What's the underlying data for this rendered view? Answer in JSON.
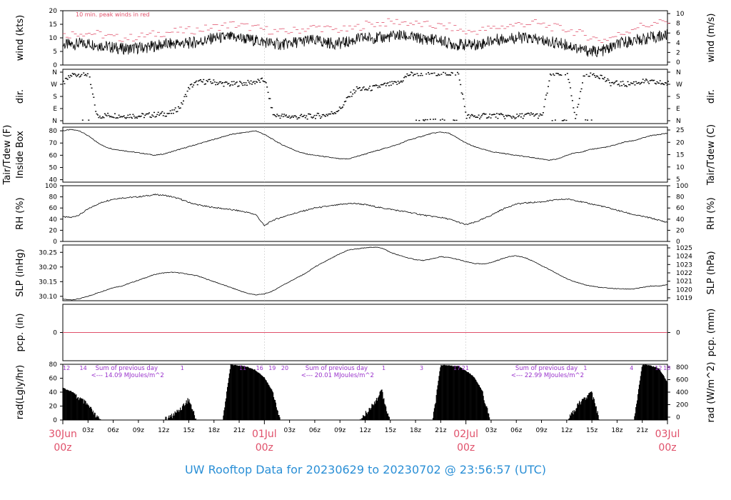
{
  "footer": "UW Rooftop Data for 20230629  to  20230702 @ 23:56:57  (UTC)",
  "colors": {
    "frame": "#000000",
    "peak": "#e0506a",
    "date": "#e0506a",
    "annot": "#9a33cc",
    "footer": "#2a8fd6"
  },
  "chart_data": [
    {
      "type": "line",
      "id": "wind",
      "ylabel": "wind (kts)",
      "ylabel_right": "wind (m/s)",
      "ylim": [
        0,
        20
      ],
      "yticks": [
        0,
        5,
        10,
        15,
        20
      ],
      "right_ylim": [
        0,
        10.29
      ],
      "right_ticks": [
        0,
        2,
        4,
        6,
        8,
        10
      ],
      "annotation": "10 min. peak winds in red",
      "series": [
        {
          "role": "mean",
          "x_hours": [
            0,
            1,
            2,
            3,
            4,
            5,
            6,
            7,
            8,
            9,
            10,
            11,
            12,
            13,
            14,
            15,
            16,
            17,
            18,
            19,
            20,
            21,
            22,
            23,
            24,
            25,
            26,
            27,
            28,
            29,
            30,
            31,
            32,
            33,
            34,
            35,
            36,
            37,
            38,
            39,
            40,
            41,
            42,
            43,
            44,
            45,
            46,
            47,
            48,
            49,
            50,
            51,
            52,
            53,
            54,
            55,
            56,
            57,
            58,
            59,
            60,
            61,
            62,
            63,
            64,
            65,
            66,
            67,
            68,
            69,
            70,
            71,
            72
          ],
          "values": [
            7.5,
            7.5,
            7.8,
            8,
            7.5,
            7,
            6.5,
            6,
            6,
            6.3,
            6.5,
            7,
            7.5,
            7.8,
            8,
            8,
            8.5,
            9,
            10,
            10,
            10.2,
            10,
            9.5,
            9,
            8.5,
            8,
            7.5,
            8,
            8.5,
            9,
            9,
            8.5,
            8,
            8,
            8.5,
            9.5,
            10,
            10,
            10,
            10.5,
            11,
            10.5,
            10,
            9.5,
            9.5,
            9,
            8,
            7.5,
            7.5,
            7.5,
            8,
            9,
            9.5,
            10,
            10,
            10,
            9.5,
            9,
            8.5,
            8,
            7.5,
            6.5,
            5.5,
            5,
            5,
            6,
            7.5,
            8.5,
            9,
            9.5,
            10,
            10.5,
            11
          ]
        },
        {
          "role": "peak",
          "color": "#e0506a",
          "x_hours": [
            0,
            2,
            4,
            6,
            8,
            10,
            12,
            14,
            16,
            18,
            20,
            22,
            24,
            26,
            28,
            30,
            32,
            34,
            36,
            38,
            40,
            42,
            44,
            46,
            48,
            50,
            52,
            54,
            56,
            58,
            60,
            62,
            64,
            66,
            68,
            70,
            72
          ],
          "values": [
            11,
            12,
            11.5,
            10,
            10,
            11,
            12,
            12.5,
            13,
            14,
            15,
            14,
            13,
            12,
            13,
            14,
            13,
            13,
            15,
            15.5,
            16,
            15,
            14.5,
            14,
            12,
            13,
            14,
            15,
            15.5,
            14,
            13,
            11,
            9,
            11,
            14,
            15,
            16
          ]
        }
      ]
    },
    {
      "type": "scatter",
      "id": "dir",
      "ylabel": "dir.",
      "ylabel_right": "dir.",
      "ylim": [
        0,
        360
      ],
      "tick_labels": [
        "N",
        "E",
        "S",
        "W",
        "N"
      ],
      "x_hours": [
        0,
        1,
        2,
        3,
        4,
        5,
        6,
        7,
        8,
        9,
        10,
        11,
        12,
        13,
        14,
        15,
        16,
        17,
        18,
        19,
        20,
        21,
        22,
        23,
        24,
        25,
        26,
        27,
        28,
        29,
        30,
        31,
        32,
        33,
        34,
        35,
        36,
        37,
        38,
        39,
        40,
        41,
        42,
        43,
        44,
        45,
        46,
        47,
        48,
        49,
        50,
        51,
        52,
        53,
        54,
        55,
        56,
        57,
        58,
        59,
        60,
        61,
        62,
        63,
        64,
        65,
        66,
        67,
        68,
        69,
        70,
        71,
        72
      ],
      "values": [
        280,
        340,
        345,
        345,
        30,
        40,
        40,
        35,
        38,
        35,
        40,
        45,
        50,
        60,
        110,
        250,
        285,
        290,
        285,
        275,
        270,
        275,
        280,
        290,
        300,
        40,
        35,
        30,
        28,
        30,
        35,
        40,
        55,
        90,
        180,
        240,
        230,
        245,
        260,
        270,
        280,
        340,
        350,
        350,
        355,
        352,
        350,
        355,
        30,
        30,
        35,
        40,
        35,
        30,
        30,
        40,
        45,
        30,
        340,
        350,
        345,
        20,
        350,
        345,
        330,
        280,
        275,
        270,
        280,
        290,
        285,
        280,
        275
      ]
    },
    {
      "type": "line",
      "id": "temp",
      "ylabel": "Inside Box",
      "ylabel2": "Tair/Tdew (F)",
      "ylabel_right": "Tair/Tdew (C)",
      "ylim": [
        38,
        83
      ],
      "yticks": [
        40,
        50,
        60,
        70,
        80
      ],
      "right_ticks": [
        5,
        10,
        15,
        20,
        25
      ],
      "x_hours": [
        0,
        1,
        2,
        3,
        4,
        5,
        6,
        7,
        8,
        9,
        10,
        11,
        12,
        13,
        14,
        15,
        16,
        17,
        18,
        19,
        20,
        21,
        22,
        23,
        24,
        25,
        26,
        27,
        28,
        29,
        30,
        31,
        32,
        33,
        34,
        35,
        36,
        37,
        38,
        39,
        40,
        41,
        42,
        43,
        44,
        45,
        46,
        47,
        48,
        49,
        50,
        51,
        52,
        53,
        54,
        55,
        56,
        57,
        58,
        59,
        60,
        61,
        62,
        63,
        64,
        65,
        66,
        67,
        68,
        69,
        70,
        71,
        72
      ],
      "values": [
        80,
        81,
        80,
        76,
        71,
        67,
        65,
        64,
        63,
        62,
        61,
        60,
        61,
        63,
        65,
        67,
        69,
        71,
        73,
        75,
        77,
        78,
        79,
        80,
        77,
        73,
        69,
        66,
        63,
        61,
        60,
        59,
        58,
        57,
        57,
        59,
        61,
        63,
        65,
        67,
        69,
        72,
        74,
        76,
        78,
        79,
        78,
        74,
        70,
        67,
        65,
        63,
        62,
        61,
        60,
        59,
        58,
        57,
        56,
        57,
        60,
        62,
        63,
        65,
        66,
        67,
        69,
        71,
        72,
        74,
        76,
        77,
        78
      ]
    },
    {
      "type": "line",
      "id": "rh",
      "ylabel": "RH (%)",
      "ylabel_right": "RH (%)",
      "ylim": [
        0,
        100
      ],
      "yticks": [
        0,
        20,
        40,
        60,
        80,
        100
      ],
      "x_hours": [
        0,
        1,
        2,
        3,
        4,
        5,
        6,
        7,
        8,
        9,
        10,
        11,
        12,
        13,
        14,
        15,
        16,
        17,
        18,
        19,
        20,
        21,
        22,
        23,
        24,
        25,
        26,
        27,
        28,
        29,
        30,
        31,
        32,
        33,
        34,
        35,
        36,
        37,
        38,
        39,
        40,
        41,
        42,
        43,
        44,
        45,
        46,
        47,
        48,
        49,
        50,
        51,
        52,
        53,
        54,
        55,
        56,
        57,
        58,
        59,
        60,
        61,
        62,
        63,
        64,
        65,
        66,
        67,
        68,
        69,
        70,
        71,
        72
      ],
      "values": [
        44,
        43,
        48,
        58,
        66,
        72,
        76,
        78,
        79,
        80,
        82,
        84,
        83,
        80,
        76,
        70,
        66,
        63,
        61,
        59,
        57,
        55,
        52,
        48,
        28,
        38,
        43,
        48,
        52,
        56,
        60,
        62,
        64,
        66,
        68,
        68,
        66,
        63,
        60,
        58,
        55,
        53,
        50,
        47,
        45,
        43,
        40,
        35,
        30,
        34,
        40,
        47,
        55,
        62,
        67,
        69,
        70,
        71,
        73,
        75,
        76,
        74,
        70,
        67,
        64,
        60,
        56,
        52,
        48,
        45,
        42,
        38,
        34
      ]
    },
    {
      "type": "line",
      "id": "slp",
      "ylabel": "SLP (inHg)",
      "ylabel_right": "SLP (hPa)",
      "ylim": [
        30.085,
        30.275
      ],
      "yticks": [
        30.1,
        30.15,
        30.2,
        30.25
      ],
      "ytick_labels": [
        "30.10",
        "30.15",
        "30.20",
        "30.25"
      ],
      "right_ticks": [
        1019,
        1020,
        1021,
        1022,
        1023,
        1024,
        1025
      ],
      "x_hours": [
        0,
        1,
        2,
        3,
        4,
        5,
        6,
        7,
        8,
        9,
        10,
        11,
        12,
        13,
        14,
        15,
        16,
        17,
        18,
        19,
        20,
        21,
        22,
        23,
        24,
        25,
        26,
        27,
        28,
        29,
        30,
        31,
        32,
        33,
        34,
        35,
        36,
        37,
        38,
        39,
        40,
        41,
        42,
        43,
        44,
        45,
        46,
        47,
        48,
        49,
        50,
        51,
        52,
        53,
        54,
        55,
        56,
        57,
        58,
        59,
        60,
        61,
        62,
        63,
        64,
        65,
        66,
        67,
        68,
        69,
        70,
        71,
        72
      ],
      "values": [
        30.09,
        30.088,
        30.092,
        30.1,
        30.11,
        30.12,
        30.13,
        30.135,
        30.145,
        30.155,
        30.165,
        30.175,
        30.18,
        30.182,
        30.18,
        30.175,
        30.17,
        30.16,
        30.15,
        30.14,
        30.13,
        30.12,
        30.11,
        30.105,
        30.108,
        30.118,
        30.135,
        30.15,
        30.165,
        30.18,
        30.2,
        30.215,
        30.23,
        30.245,
        30.258,
        30.262,
        30.265,
        30.268,
        30.265,
        30.25,
        30.24,
        30.232,
        30.225,
        30.222,
        30.228,
        30.235,
        30.232,
        30.226,
        30.218,
        30.212,
        30.21,
        30.215,
        30.225,
        30.235,
        30.238,
        30.232,
        30.22,
        30.205,
        30.19,
        30.175,
        30.16,
        30.15,
        30.14,
        30.135,
        30.13,
        30.128,
        30.126,
        30.125,
        30.125,
        30.13,
        30.135,
        30.135,
        30.14
      ]
    },
    {
      "type": "line",
      "id": "pcp",
      "ylabel": "pcp. (in)",
      "ylabel_right": "pcp. (mm)",
      "ylim": [
        -1,
        1
      ],
      "yticks": [
        0
      ],
      "right_ticks": [
        0
      ],
      "line_color": "#e0506a",
      "x_hours": [
        0,
        72
      ],
      "values": [
        0,
        0
      ]
    },
    {
      "type": "area",
      "id": "rad",
      "ylabel": "rad(Lgly/hr)",
      "ylabel_right": "rad (W/m^2)",
      "ylim": [
        0,
        80
      ],
      "yticks": [
        0,
        20,
        40,
        60,
        80
      ],
      "right_ticks": [
        0,
        200,
        400,
        600,
        800
      ],
      "x_hours": [
        0,
        1,
        2,
        3,
        4,
        5,
        6,
        7,
        8,
        9,
        10,
        11,
        12,
        13,
        14,
        15,
        16,
        17,
        18,
        19,
        20,
        21,
        22,
        23,
        24,
        25,
        26,
        27,
        28,
        29,
        30,
        31,
        32,
        33,
        34,
        35,
        36,
        37,
        38,
        39,
        40,
        41,
        42,
        43,
        44,
        45,
        46,
        47,
        48,
        49,
        50,
        51,
        52,
        53,
        54,
        55,
        56,
        57,
        58,
        59,
        60,
        61,
        62,
        63,
        64,
        65,
        66,
        67,
        68,
        69,
        70,
        71,
        72
      ],
      "values": [
        47,
        42,
        35,
        25,
        8,
        0,
        0,
        0,
        0,
        0,
        0,
        0,
        3,
        10,
        20,
        34,
        0,
        0,
        0,
        0,
        80,
        79,
        77,
        72,
        62,
        42,
        0,
        0,
        0,
        0,
        0,
        0,
        0,
        0,
        0,
        0,
        12,
        28,
        45,
        0,
        0,
        0,
        0,
        0,
        0,
        80,
        79,
        78,
        72,
        62,
        42,
        0,
        0,
        0,
        0,
        0,
        0,
        0,
        0,
        0,
        0,
        20,
        35,
        42,
        0,
        0,
        0,
        0,
        0,
        80,
        79,
        75,
        55
      ],
      "header_hours": [
        {
          "x": 0,
          "label": "12"
        },
        {
          "x": 2,
          "label": "14"
        },
        {
          "x": 14,
          "label": "1"
        },
        {
          "x": 21,
          "label": "11"
        },
        {
          "x": 23,
          "label": "16"
        },
        {
          "x": 24.5,
          "label": "19"
        },
        {
          "x": 26,
          "label": "20"
        },
        {
          "x": 38,
          "label": "1"
        },
        {
          "x": 42.5,
          "label": "3"
        },
        {
          "x": 46.5,
          "label": "17"
        },
        {
          "x": 47.5,
          "label": "21"
        },
        {
          "x": 62,
          "label": "1"
        },
        {
          "x": 67.5,
          "label": "4"
        },
        {
          "x": 70.5,
          "label": "12"
        },
        {
          "x": 71.5,
          "label": "18"
        }
      ],
      "daily_totals": [
        {
          "x": 1.5,
          "title": "Sum of previous day",
          "value": "<--- 14.09 MJoules/m^2"
        },
        {
          "x": 26.5,
          "title": "Sum of previous day",
          "value": "<--- 20.01 MJoules/m^2"
        },
        {
          "x": 51.5,
          "title": "Sum of previous day",
          "value": "<--- 22.99 MJoules/m^2"
        }
      ]
    }
  ],
  "x_axis": {
    "range_hours": [
      0,
      72
    ],
    "hour_ticks": [
      {
        "x": 3,
        "label": "03z"
      },
      {
        "x": 6,
        "label": "06z"
      },
      {
        "x": 9,
        "label": "09z"
      },
      {
        "x": 12,
        "label": "12z"
      },
      {
        "x": 15,
        "label": "15z"
      },
      {
        "x": 18,
        "label": "18z"
      },
      {
        "x": 21,
        "label": "21z"
      },
      {
        "x": 27,
        "label": "03z"
      },
      {
        "x": 30,
        "label": "06z"
      },
      {
        "x": 33,
        "label": "09z"
      },
      {
        "x": 36,
        "label": "12z"
      },
      {
        "x": 39,
        "label": "15z"
      },
      {
        "x": 42,
        "label": "18z"
      },
      {
        "x": 45,
        "label": "21z"
      },
      {
        "x": 51,
        "label": "03z"
      },
      {
        "x": 54,
        "label": "06z"
      },
      {
        "x": 57,
        "label": "09z"
      },
      {
        "x": 60,
        "label": "12z"
      },
      {
        "x": 63,
        "label": "15z"
      },
      {
        "x": 66,
        "label": "18z"
      },
      {
        "x": 69,
        "label": "21z"
      }
    ],
    "day_ticks": [
      {
        "x": 0,
        "date": "30Jun",
        "time": "00z"
      },
      {
        "x": 24,
        "date": "01Jul",
        "time": "00z"
      },
      {
        "x": 48,
        "date": "02Jul",
        "time": "00z"
      },
      {
        "x": 72,
        "date": "03Jul",
        "time": "00z"
      }
    ]
  }
}
